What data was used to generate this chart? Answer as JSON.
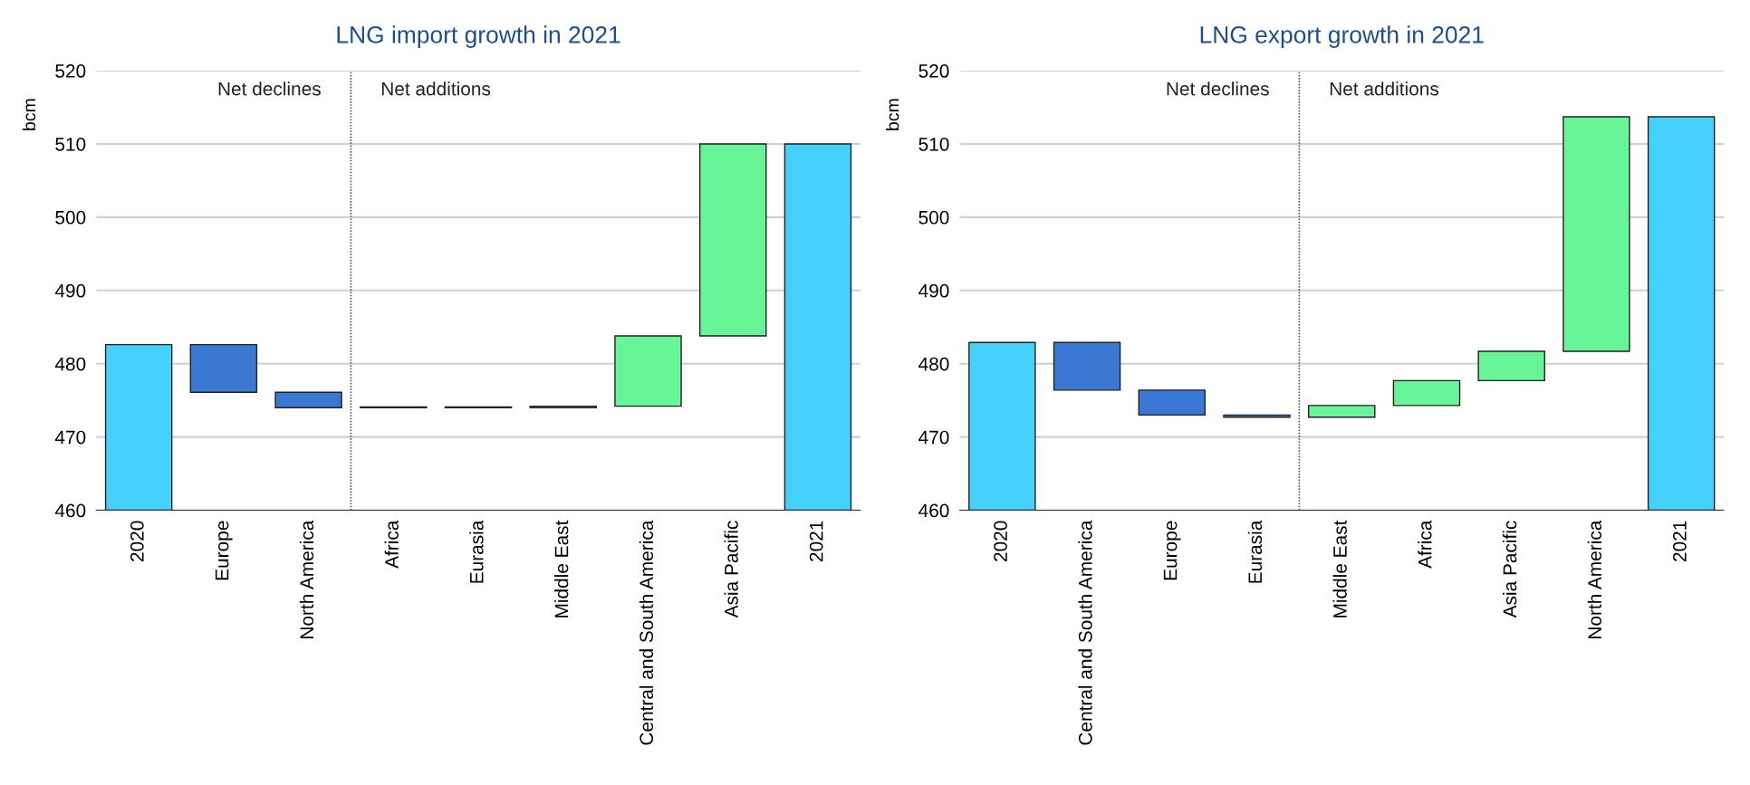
{
  "chart_data": [
    {
      "type": "bar",
      "title": "LNG import growth in 2021",
      "ylabel": "bcm",
      "categories": [
        "2020",
        "Europe",
        "North America",
        "Africa",
        "Eurasia",
        "Middle East",
        "Central and South America",
        "Asia Pacific",
        "2021"
      ],
      "base": [
        460,
        476.1,
        474.0,
        474.0,
        474.0,
        474.0,
        474.2,
        483.8,
        460
      ],
      "values": [
        22.6,
        6.5,
        2.1,
        0.1,
        0.1,
        0.2,
        9.6,
        26.2,
        50.0
      ],
      "colors": [
        "#45d1fb",
        "#3a78d4",
        "#3a78d4",
        "#68f598",
        "#68f598",
        "#68f598",
        "#68f598",
        "#68f598",
        "#45d1fb"
      ],
      "ylim": [
        460,
        520
      ],
      "yticks": [
        460,
        470,
        480,
        490,
        500,
        510,
        520
      ],
      "grid": "y",
      "annotations": [
        "Net declines",
        "Net additions"
      ]
    },
    {
      "type": "bar",
      "title": "LNG export growth in 2021",
      "ylabel": "bcm",
      "categories": [
        "2020",
        "Central and South America",
        "Europe",
        "Eurasia",
        "Middle East",
        "Africa",
        "Asia Pacific",
        "North America",
        "2021"
      ],
      "base": [
        460,
        476.4,
        473.0,
        472.7,
        472.7,
        474.3,
        477.7,
        481.7,
        460
      ],
      "values": [
        22.9,
        6.5,
        3.4,
        0.3,
        1.6,
        3.4,
        4.0,
        32.0,
        53.7
      ],
      "colors": [
        "#45d1fb",
        "#3a78d4",
        "#3a78d4",
        "#3a78d4",
        "#68f598",
        "#68f598",
        "#68f598",
        "#68f598",
        "#45d1fb"
      ],
      "ylim": [
        460,
        520
      ],
      "yticks": [
        460,
        470,
        480,
        490,
        500,
        510,
        520
      ],
      "grid": "y",
      "annotations": [
        "Net declines",
        "Net additions"
      ]
    }
  ]
}
